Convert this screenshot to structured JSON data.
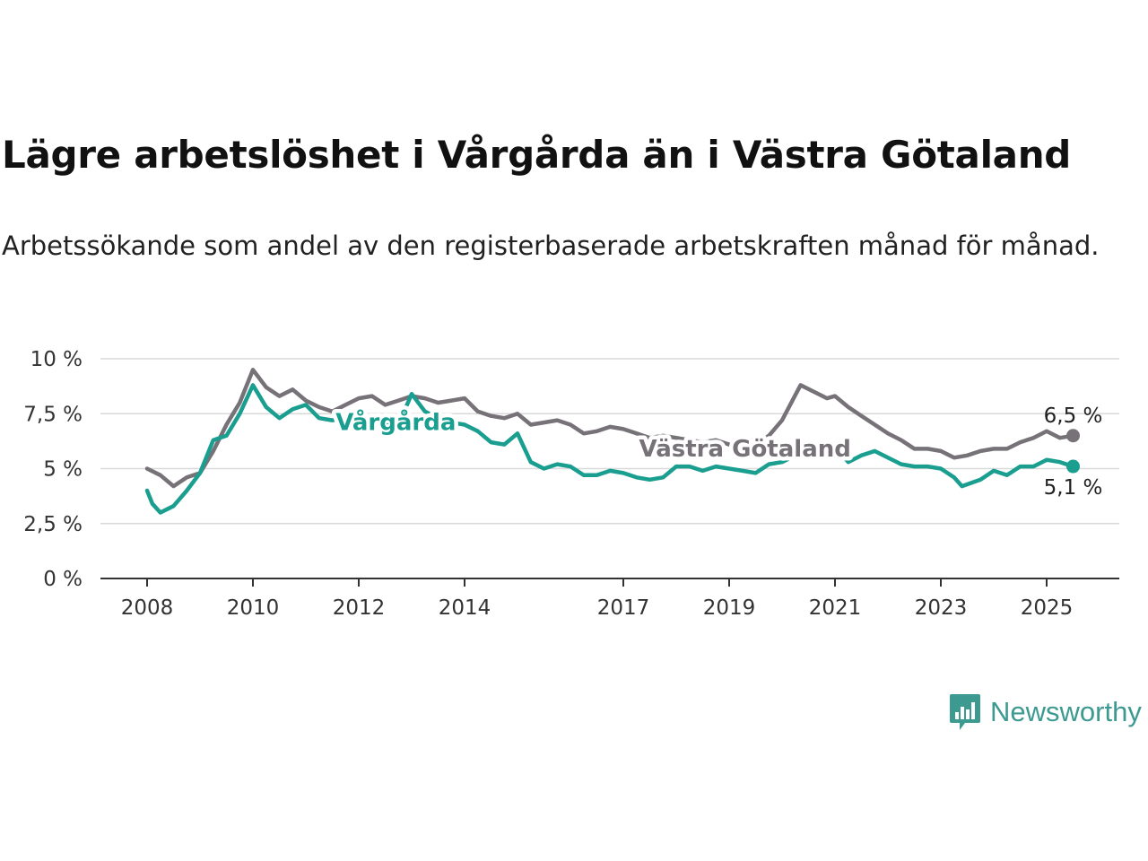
{
  "title": "Lägre arbetslöshet i Vårgårda än i Västra Götaland",
  "subtitle": "Arbetssökande som andel av den registerbaserade arbetskraften månad för månad.",
  "brand": {
    "name": "Newsworthy",
    "color": "#3d9a91",
    "icon": "newsworthy-chart-bubble-icon"
  },
  "chart_data": {
    "type": "line",
    "xlim": [
      2008,
      2025.8
    ],
    "ylim": [
      0,
      10
    ],
    "x_ticks": [
      "2008",
      "2010",
      "2012",
      "2014",
      "2017",
      "2019",
      "2021",
      "2023",
      "2025"
    ],
    "y_ticks": [
      "0 %",
      "2,5 %",
      "5 %",
      "7,5 %",
      "10 %"
    ],
    "grid": true,
    "series": [
      {
        "name": "Västra Götaland",
        "color": "#767278",
        "end_label": "6,5 %",
        "label_at": 2019.3,
        "points": [
          [
            2008,
            5.0
          ],
          [
            2008.25,
            4.7
          ],
          [
            2008.5,
            4.2
          ],
          [
            2008.75,
            4.6
          ],
          [
            2009,
            4.8
          ],
          [
            2009.25,
            5.8
          ],
          [
            2009.5,
            7.0
          ],
          [
            2009.75,
            8.0
          ],
          [
            2010,
            9.5
          ],
          [
            2010.25,
            8.7
          ],
          [
            2010.5,
            8.3
          ],
          [
            2010.75,
            8.6
          ],
          [
            2011,
            8.1
          ],
          [
            2011.25,
            7.8
          ],
          [
            2011.5,
            7.6
          ],
          [
            2011.75,
            7.9
          ],
          [
            2012,
            8.2
          ],
          [
            2012.25,
            8.3
          ],
          [
            2012.5,
            7.9
          ],
          [
            2012.75,
            8.1
          ],
          [
            2013,
            8.3
          ],
          [
            2013.25,
            8.2
          ],
          [
            2013.5,
            8.0
          ],
          [
            2013.75,
            8.1
          ],
          [
            2014,
            8.2
          ],
          [
            2014.25,
            7.6
          ],
          [
            2014.5,
            7.4
          ],
          [
            2014.75,
            7.3
          ],
          [
            2015,
            7.5
          ],
          [
            2015.25,
            7.0
          ],
          [
            2015.5,
            7.1
          ],
          [
            2015.75,
            7.2
          ],
          [
            2016,
            7.0
          ],
          [
            2016.25,
            6.6
          ],
          [
            2016.5,
            6.7
          ],
          [
            2016.75,
            6.9
          ],
          [
            2017,
            6.8
          ],
          [
            2017.25,
            6.6
          ],
          [
            2017.5,
            6.4
          ],
          [
            2017.75,
            6.5
          ],
          [
            2018,
            6.4
          ],
          [
            2018.25,
            6.3
          ],
          [
            2018.5,
            6.2
          ],
          [
            2018.75,
            6.3
          ],
          [
            2019,
            6.1
          ],
          [
            2019.25,
            6.0
          ],
          [
            2019.5,
            6.1
          ],
          [
            2019.75,
            6.5
          ],
          [
            2020,
            7.2
          ],
          [
            2020.35,
            8.8
          ],
          [
            2020.6,
            8.5
          ],
          [
            2020.85,
            8.2
          ],
          [
            2021,
            8.3
          ],
          [
            2021.25,
            7.8
          ],
          [
            2021.5,
            7.4
          ],
          [
            2021.75,
            7.0
          ],
          [
            2022,
            6.6
          ],
          [
            2022.25,
            6.3
          ],
          [
            2022.5,
            5.9
          ],
          [
            2022.75,
            5.9
          ],
          [
            2023,
            5.8
          ],
          [
            2023.25,
            5.5
          ],
          [
            2023.5,
            5.6
          ],
          [
            2023.75,
            5.8
          ],
          [
            2024,
            5.9
          ],
          [
            2024.25,
            5.9
          ],
          [
            2024.5,
            6.2
          ],
          [
            2024.75,
            6.4
          ],
          [
            2025,
            6.7
          ],
          [
            2025.25,
            6.4
          ],
          [
            2025.5,
            6.5
          ]
        ]
      },
      {
        "name": "Vårgårda",
        "color": "#1a9e8f",
        "end_label": "5,1 %",
        "label_at": 2012.7,
        "points": [
          [
            2008,
            4.0
          ],
          [
            2008.1,
            3.4
          ],
          [
            2008.25,
            3.0
          ],
          [
            2008.5,
            3.3
          ],
          [
            2008.75,
            4.0
          ],
          [
            2009,
            4.8
          ],
          [
            2009.25,
            6.3
          ],
          [
            2009.5,
            6.5
          ],
          [
            2009.75,
            7.5
          ],
          [
            2010,
            8.8
          ],
          [
            2010.25,
            7.8
          ],
          [
            2010.5,
            7.3
          ],
          [
            2010.75,
            7.7
          ],
          [
            2011,
            7.9
          ],
          [
            2011.25,
            7.3
          ],
          [
            2011.5,
            7.2
          ],
          [
            2011.75,
            7.3
          ],
          [
            2012,
            7.4
          ],
          [
            2012.25,
            7.3
          ],
          [
            2012.5,
            7.1
          ],
          [
            2012.75,
            7.0
          ],
          [
            2013,
            8.4
          ],
          [
            2013.25,
            7.6
          ],
          [
            2013.5,
            7.3
          ],
          [
            2013.75,
            7.1
          ],
          [
            2014,
            7.0
          ],
          [
            2014.25,
            6.7
          ],
          [
            2014.5,
            6.2
          ],
          [
            2014.75,
            6.1
          ],
          [
            2015,
            6.6
          ],
          [
            2015.25,
            5.3
          ],
          [
            2015.5,
            5.0
          ],
          [
            2015.75,
            5.2
          ],
          [
            2016,
            5.1
          ],
          [
            2016.25,
            4.7
          ],
          [
            2016.5,
            4.7
          ],
          [
            2016.75,
            4.9
          ],
          [
            2017,
            4.8
          ],
          [
            2017.25,
            4.6
          ],
          [
            2017.5,
            4.5
          ],
          [
            2017.75,
            4.6
          ],
          [
            2018,
            5.1
          ],
          [
            2018.25,
            5.1
          ],
          [
            2018.5,
            4.9
          ],
          [
            2018.75,
            5.1
          ],
          [
            2019,
            5.0
          ],
          [
            2019.25,
            4.9
          ],
          [
            2019.5,
            4.8
          ],
          [
            2019.75,
            5.2
          ],
          [
            2020,
            5.3
          ],
          [
            2020.25,
            5.6
          ],
          [
            2020.5,
            5.9
          ],
          [
            2020.75,
            6.1
          ],
          [
            2021,
            6.0
          ],
          [
            2021.25,
            5.3
          ],
          [
            2021.5,
            5.6
          ],
          [
            2021.75,
            5.8
          ],
          [
            2022,
            5.5
          ],
          [
            2022.25,
            5.2
          ],
          [
            2022.5,
            5.1
          ],
          [
            2022.75,
            5.1
          ],
          [
            2023,
            5.0
          ],
          [
            2023.25,
            4.6
          ],
          [
            2023.4,
            4.2
          ],
          [
            2023.75,
            4.5
          ],
          [
            2024,
            4.9
          ],
          [
            2024.25,
            4.7
          ],
          [
            2024.5,
            5.1
          ],
          [
            2024.75,
            5.1
          ],
          [
            2025,
            5.4
          ],
          [
            2025.25,
            5.3
          ],
          [
            2025.5,
            5.1
          ]
        ]
      }
    ]
  }
}
